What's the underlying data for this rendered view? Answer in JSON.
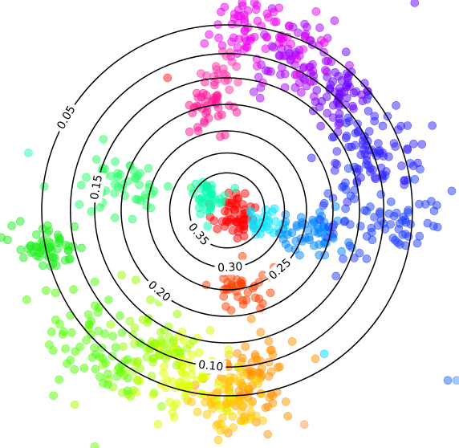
{
  "chart_data": {
    "type": "scatter",
    "title": "",
    "xlabel": "",
    "ylabel": "",
    "xlim": [
      -1.0,
      1.0
    ],
    "ylim": [
      -1.0,
      1.0
    ],
    "grid": false,
    "axes_visible": false,
    "point_opacity": 0.5,
    "contours": {
      "shape": "concentric circles",
      "center": [
        -0.08,
        0.08
      ],
      "levels": [
        0.05,
        0.1,
        0.15,
        0.2,
        0.25,
        0.3,
        0.35
      ],
      "radii": [
        0.84,
        0.71,
        0.6,
        0.48,
        0.36,
        0.26,
        0.17
      ],
      "labels": [
        {
          "text": "0.05",
          "angle_deg": 150
        },
        {
          "text": "0.10",
          "angle_deg": -96
        },
        {
          "text": "0.15",
          "angle_deg": 170
        },
        {
          "text": "0.20",
          "angle_deg": -130
        },
        {
          "text": "0.25",
          "angle_deg": -48
        },
        {
          "text": "0.30",
          "angle_deg": -87
        },
        {
          "text": "0.35",
          "angle_deg": -140
        }
      ],
      "color": "#000000"
    },
    "clusters": [
      {
        "color": "#ff0000",
        "center": [
          -0.05,
          0.07
        ],
        "spread": [
          0.05,
          0.06
        ],
        "count": 55
      },
      {
        "color": "#ff4000",
        "center": [
          -0.01,
          -0.28
        ],
        "spread": [
          0.07,
          0.06
        ],
        "count": 40
      },
      {
        "color": "#ff9400",
        "center": [
          0.03,
          -0.67
        ],
        "spread": [
          0.09,
          0.1
        ],
        "count": 75
      },
      {
        "color": "#ffc800",
        "center": [
          -0.06,
          -0.79
        ],
        "spread": [
          0.08,
          0.08
        ],
        "count": 70
      },
      {
        "color": "#ddff00",
        "center": [
          -0.26,
          -0.66
        ],
        "spread": [
          0.09,
          0.1
        ],
        "count": 70
      },
      {
        "color": "#99ff00",
        "center": [
          -0.44,
          -0.55
        ],
        "spread": [
          0.11,
          0.12
        ],
        "count": 70
      },
      {
        "color": "#50ff00",
        "center": [
          -0.68,
          -0.53
        ],
        "spread": [
          0.12,
          0.13
        ],
        "count": 60
      },
      {
        "color": "#22ee22",
        "center": [
          -0.89,
          -0.08
        ],
        "spread": [
          0.09,
          0.05
        ],
        "count": 60
      },
      {
        "color": "#22ff66",
        "center": [
          -0.56,
          0.19
        ],
        "spread": [
          0.12,
          0.07
        ],
        "count": 55
      },
      {
        "color": "#00ffb0",
        "center": [
          -0.16,
          0.14
        ],
        "spread": [
          0.04,
          0.04
        ],
        "count": 35
      },
      {
        "color": "#00e6ff",
        "center": [
          0.09,
          0.03
        ],
        "spread": [
          0.05,
          0.03
        ],
        "count": 30
      },
      {
        "color": "#0088ff",
        "center": [
          0.3,
          -0.03
        ],
        "spread": [
          0.08,
          0.05
        ],
        "count": 55
      },
      {
        "color": "#2040ff",
        "center": [
          0.63,
          0.08
        ],
        "spread": [
          0.14,
          0.12
        ],
        "count": 90
      },
      {
        "color": "#3322ff",
        "center": [
          0.58,
          0.37
        ],
        "spread": [
          0.12,
          0.09
        ],
        "count": 80
      },
      {
        "color": "#6a00ff",
        "center": [
          0.43,
          0.6
        ],
        "spread": [
          0.08,
          0.07
        ],
        "count": 55
      },
      {
        "color": "#aa00ff",
        "center": [
          0.24,
          0.75
        ],
        "spread": [
          0.09,
          0.1
        ],
        "count": 70
      },
      {
        "color": "#ee00ee",
        "center": [
          0.04,
          0.9
        ],
        "spread": [
          0.11,
          0.09
        ],
        "count": 75
      },
      {
        "color": "#ff1493",
        "center": [
          -0.14,
          0.55
        ],
        "spread": [
          0.05,
          0.05
        ],
        "count": 40
      },
      {
        "color": "#ff33aa",
        "center": [
          -0.11,
          0.71
        ],
        "spread": [
          0.04,
          0.04
        ],
        "count": 20
      }
    ],
    "outliers": [
      {
        "x": -0.35,
        "y": 0.68,
        "color": "#ff1a1a"
      },
      {
        "x": 0.77,
        "y": 1.02,
        "color": "#6600ff"
      },
      {
        "x": 0.92,
        "y": -0.69,
        "color": "#2266ff"
      },
      {
        "x": 0.96,
        "y": -0.69,
        "color": "#4499ff"
      },
      {
        "x": 0.36,
        "y": -0.57,
        "color": "#00ddff"
      },
      {
        "x": -0.77,
        "y": -0.8,
        "color": "#aaff00"
      },
      {
        "x": -0.68,
        "y": -0.99,
        "color": "#66ff00"
      },
      {
        "x": 0.27,
        "y": -0.89,
        "color": "#ff9955"
      },
      {
        "x": -0.98,
        "y": 0.34,
        "color": "#22ffaa"
      }
    ]
  }
}
